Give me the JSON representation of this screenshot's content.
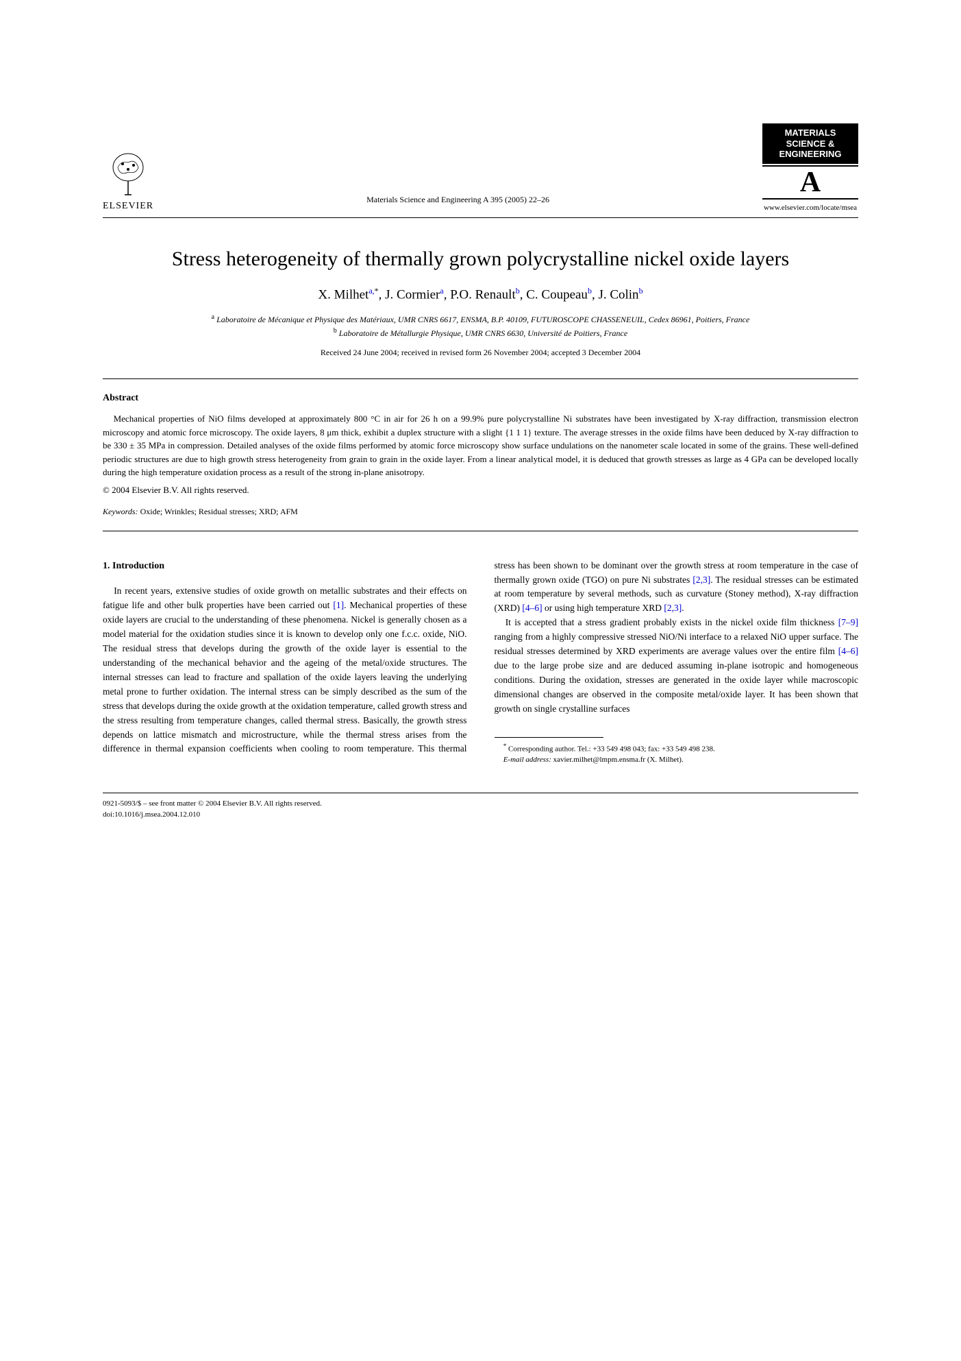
{
  "header": {
    "elsevier_name": "ELSEVIER",
    "journal_ref": "Materials Science and Engineering A 395 (2005) 22–26",
    "journal_logo_line1": "MATERIALS",
    "journal_logo_line2": "SCIENCE &",
    "journal_logo_line3": "ENGINEERING",
    "journal_logo_letter": "A",
    "journal_url": "www.elsevier.com/locate/msea"
  },
  "title": "Stress heterogeneity of thermally grown polycrystalline nickel oxide layers",
  "authors_html": "X. Milhet<sup>a,</sup><sup class='star'>*</sup>, J. Cormier<sup>a</sup>, P.O. Renault<sup>b</sup>, C. Coupeau<sup>b</sup>, J. Colin<sup>b</sup>",
  "affiliations": {
    "a": "Laboratoire de Mécanique et Physique des Matériaux, UMR CNRS 6617, ENSMA, B.P. 40109, FUTUROSCOPE CHASSENEUIL, Cedex 86961, Poitiers, France",
    "b": "Laboratoire de Métallurgie Physique, UMR CNRS 6630, Université de Poitiers, France"
  },
  "dates": "Received 24 June 2004; received in revised form 26 November 2004; accepted 3 December 2004",
  "abstract": {
    "heading": "Abstract",
    "text": "Mechanical properties of NiO films developed at approximately 800 °C in air for 26 h on a 99.9% pure polycrystalline Ni substrates have been investigated by X-ray diffraction, transmission electron microscopy and atomic force microscopy. The oxide layers, 8 μm thick, exhibit a duplex structure with a slight {1 1 1} texture. The average stresses in the oxide films have been deduced by X-ray diffraction to be 330 ± 35 MPa in compression. Detailed analyses of the oxide films performed by atomic force microscopy show surface undulations on the nanometer scale located in some of the grains. These well-defined periodic structures are due to high growth stress heterogeneity from grain to grain in the oxide layer. From a linear analytical model, it is deduced that growth stresses as large as 4 GPa can be developed locally during the high temperature oxidation process as a result of the strong in-plane anisotropy.",
    "copyright": "© 2004 Elsevier B.V. All rights reserved."
  },
  "keywords": {
    "label": "Keywords:",
    "text": "Oxide; Wrinkles; Residual stresses; XRD; AFM"
  },
  "section1": {
    "heading": "1. Introduction",
    "p1_part1": "In recent years, extensive studies of oxide growth on metallic substrates and their effects on fatigue life and other bulk properties have been carried out ",
    "p1_ref1": "[1]",
    "p1_part2": ". Mechanical properties of these oxide layers are crucial to the understanding of these phenomena. Nickel is generally chosen as a model material for the oxidation studies since it is known to develop only one f.c.c. oxide, NiO. The residual stress that develops during the growth of the oxide layer is essential to the understanding of the mechanical behavior and the ageing of the metal/oxide structures. The internal stresses can lead to fracture and spallation of the oxide layers leaving the underlying metal prone to further oxidation. The internal stress can be simply described as the sum of the stress that develops during the oxide growth at the oxidation temperature, called growth stress and the stress resulting from temperature changes, called thermal stress. Basically, the growth stress depends on lattice mismatch and microstructure, while the thermal stress arises from the difference in thermal expansion coefficients when cooling to room temperature. This thermal stress has been shown to be dominant over the growth stress at room temperature in the case of thermally grown oxide (TGO) on pure Ni substrates ",
    "p1_ref2": "[2,3]",
    "p1_part3": ". The residual stresses can be estimated at room temperature by several methods, such as curvature (Stoney method), X-ray diffraction (XRD) ",
    "p1_ref3": "[4–6]",
    "p1_part4": " or using high temperature XRD ",
    "p1_ref4": "[2,3]",
    "p1_part5": ".",
    "p2_part1": "It is accepted that a stress gradient probably exists in the nickel oxide film thickness ",
    "p2_ref1": "[7–9]",
    "p2_part2": " ranging from a highly compressive stressed NiO/Ni interface to a relaxed NiO upper surface. The residual stresses determined by XRD experiments are average values over the entire film ",
    "p2_ref2": "[4–6]",
    "p2_part3": " due to the large probe size and are deduced assuming in-plane isotropic and homogeneous conditions. During the oxidation, stresses are generated in the oxide layer while macroscopic dimensional changes are observed in the composite metal/oxide layer. It has been shown that growth on single crystalline surfaces"
  },
  "footnote": {
    "corresponding": "Corresponding author. Tel.: +33 549 498 043; fax: +33 549 498 238.",
    "email_label": "E-mail address:",
    "email": "xavier.milhet@lmpm.ensma.fr (X. Milhet)."
  },
  "footer": {
    "line1": "0921-5093/$ – see front matter © 2004 Elsevier B.V. All rights reserved.",
    "line2": "doi:10.1016/j.msea.2004.12.010"
  }
}
